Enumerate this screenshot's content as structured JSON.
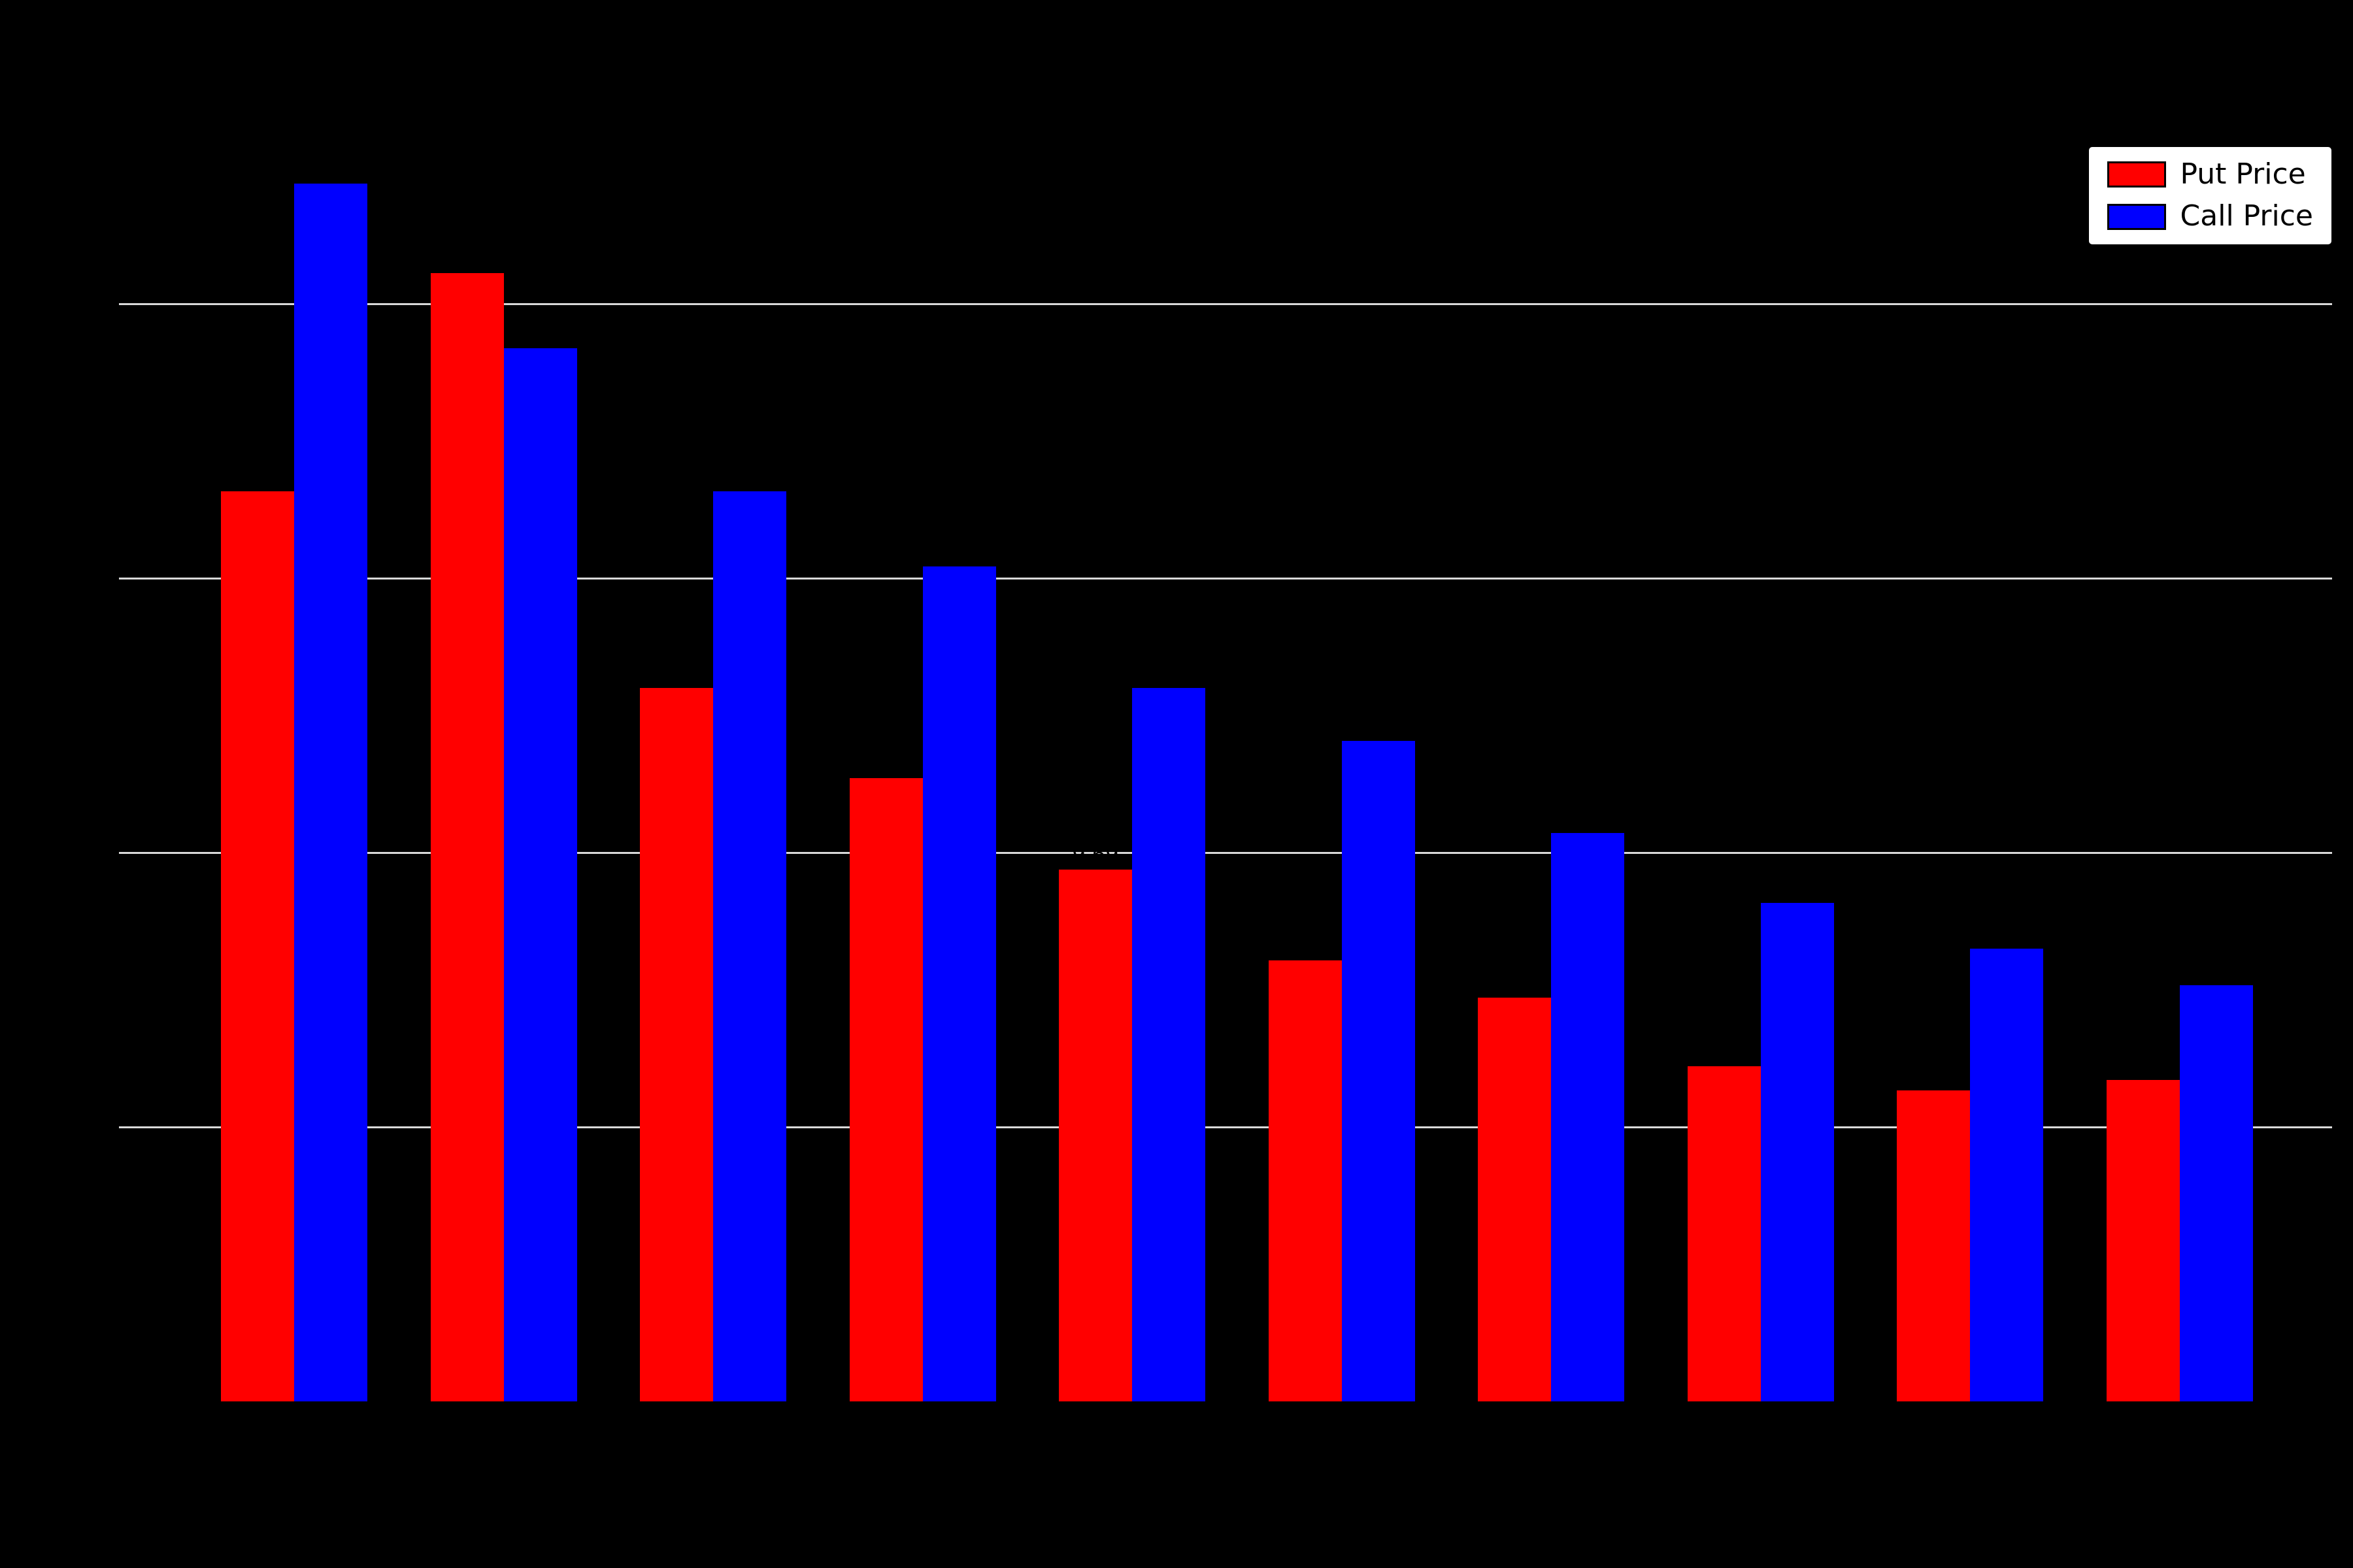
{
  "legend": {
    "items": [
      {
        "label": "Put Price",
        "color": "#ff0000"
      },
      {
        "label": "Call Price",
        "color": "#0000ff"
      }
    ]
  },
  "chart_data": {
    "type": "bar",
    "background_color": "#000000",
    "gridline_color": "#d9d9d9",
    "categories": [
      "",
      "",
      "",
      "",
      "",
      "",
      "",
      "",
      "",
      ""
    ],
    "series": [
      {
        "name": "Put Price",
        "color": "#ff0000",
        "values": [
          16.58,
          20.56,
          13.0,
          11.36,
          9.69,
          8.03,
          7.36,
          6.11,
          5.67,
          5.86
        ]
      },
      {
        "name": "Call Price",
        "color": "#0000ff",
        "values": [
          22.19,
          19.19,
          16.58,
          15.22,
          13.0,
          12.03,
          10.36,
          9.08,
          8.25,
          7.58
        ]
      }
    ],
    "title": "",
    "xlabel": "",
    "ylabel": "",
    "ylim": [
      0,
      25
    ],
    "gridlines": [
      5,
      10,
      15,
      20
    ],
    "grid": "horizontal",
    "legend_position": "upper right",
    "value_labels": true
  }
}
